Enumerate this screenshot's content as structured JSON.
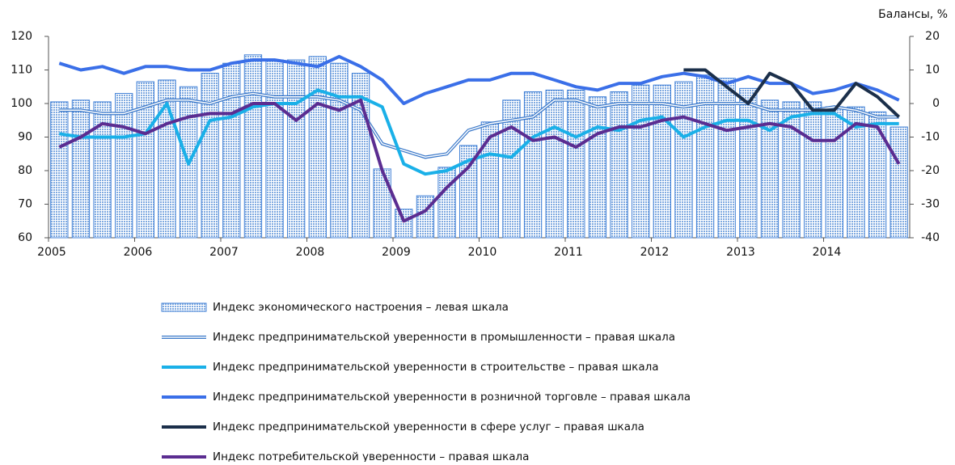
{
  "chart_data": {
    "type": "bar",
    "y2_label": "Балансы, %",
    "categories": [
      "2005",
      null,
      null,
      null,
      "2006",
      null,
      null,
      null,
      "2007",
      null,
      null,
      null,
      "2008",
      null,
      null,
      null,
      "2009",
      null,
      null,
      null,
      "2010",
      null,
      null,
      null,
      "2011",
      null,
      null,
      null,
      "2012",
      null,
      null,
      null,
      "2013",
      null,
      null,
      null,
      "2014",
      null,
      null,
      null
    ],
    "ylim": [
      60,
      120
    ],
    "yticks": [
      60,
      70,
      80,
      90,
      100,
      110,
      120
    ],
    "y2lim": [
      -40,
      20
    ],
    "y2ticks": [
      -40,
      -30,
      -20,
      -10,
      0,
      10,
      20
    ],
    "series": [
      {
        "name": "Индекс экономического настроения – левая шкала",
        "type": "bar",
        "color": "#9cc2ec",
        "values": [
          100.5,
          101,
          100.5,
          103,
          106.5,
          107,
          105,
          109,
          112,
          114.5,
          113,
          113,
          114,
          112,
          109,
          80.5,
          68.5,
          72.5,
          81,
          87.5,
          94.5,
          101,
          103.5,
          104,
          104,
          102,
          103.5,
          105.5,
          105.5,
          106.5,
          108.5,
          107.5,
          104.5,
          101,
          100.5,
          100.5,
          99,
          99,
          97.5,
          93
        ]
      },
      {
        "name": "Индекс предпринимательской уверенности в промышленности – правая шкала",
        "type": "double-line",
        "axis": "y2",
        "color": "#3a78c9",
        "values": [
          -2,
          -2,
          -3,
          -3,
          -1,
          1,
          1,
          0,
          2,
          3,
          2,
          2,
          2,
          1,
          -2,
          -12,
          -14,
          -16,
          -15,
          -8,
          -6,
          -5,
          -4,
          1,
          1,
          -1,
          0,
          0,
          0,
          -1,
          0,
          0,
          0,
          -2,
          -2,
          -2,
          -1,
          -2,
          -4,
          -4
        ]
      },
      {
        "name": "Индекс предпринимательской уверенности в строительстве – правая шкала",
        "type": "line",
        "axis": "y2",
        "color": "#1ab0e8",
        "values": [
          -9,
          -10,
          -10,
          -10,
          -9,
          0,
          -18,
          -5,
          -4,
          -1,
          0,
          0,
          4,
          2,
          2,
          -1,
          -18,
          -21,
          -20,
          -17,
          -15,
          -16,
          -10,
          -7,
          -10,
          -7,
          -8,
          -5,
          -4,
          -10,
          -7,
          -5,
          -5,
          -8,
          -4,
          -3,
          -3,
          -7,
          -6,
          -6
        ]
      },
      {
        "name": "Индекс предпринимательской уверенности в розничной торговле – правая шкала",
        "type": "line",
        "axis": "y2",
        "color": "#3a6fe8",
        "values": [
          12,
          10,
          11,
          9,
          11,
          11,
          10,
          10,
          12,
          13,
          13,
          12,
          11,
          14,
          11,
          7,
          0,
          3,
          5,
          7,
          7,
          9,
          9,
          7,
          5,
          4,
          6,
          6,
          8,
          9,
          8,
          6,
          8,
          6,
          6,
          3,
          4,
          6,
          4,
          1
        ]
      },
      {
        "name": "Индекс предпринимательской уверенности в сфере услуг – правая шкала",
        "type": "line",
        "axis": "y2",
        "color": "#1b2f4a",
        "values": [
          null,
          null,
          null,
          null,
          null,
          null,
          null,
          null,
          null,
          null,
          null,
          null,
          null,
          null,
          null,
          null,
          null,
          null,
          null,
          null,
          null,
          null,
          null,
          null,
          null,
          null,
          null,
          null,
          null,
          10,
          10,
          5,
          0,
          9,
          6,
          -2,
          -2,
          6,
          2,
          -4
        ]
      },
      {
        "name": "Индекс потребительской уверенности – правая шкала",
        "type": "line",
        "axis": "y2",
        "color": "#5b2d91",
        "values": [
          -13,
          -10,
          -6,
          -7,
          -9,
          -6,
          -4,
          -3,
          -3,
          0,
          0,
          -5,
          0,
          -2,
          1,
          -20,
          -35,
          -32,
          -25,
          -19,
          -10,
          -7,
          -11,
          -10,
          -13,
          -9,
          -7,
          -7,
          -5,
          -4,
          -6,
          -8,
          -7,
          -6,
          -7,
          -11,
          -11,
          -6,
          -7,
          -18
        ]
      }
    ]
  }
}
